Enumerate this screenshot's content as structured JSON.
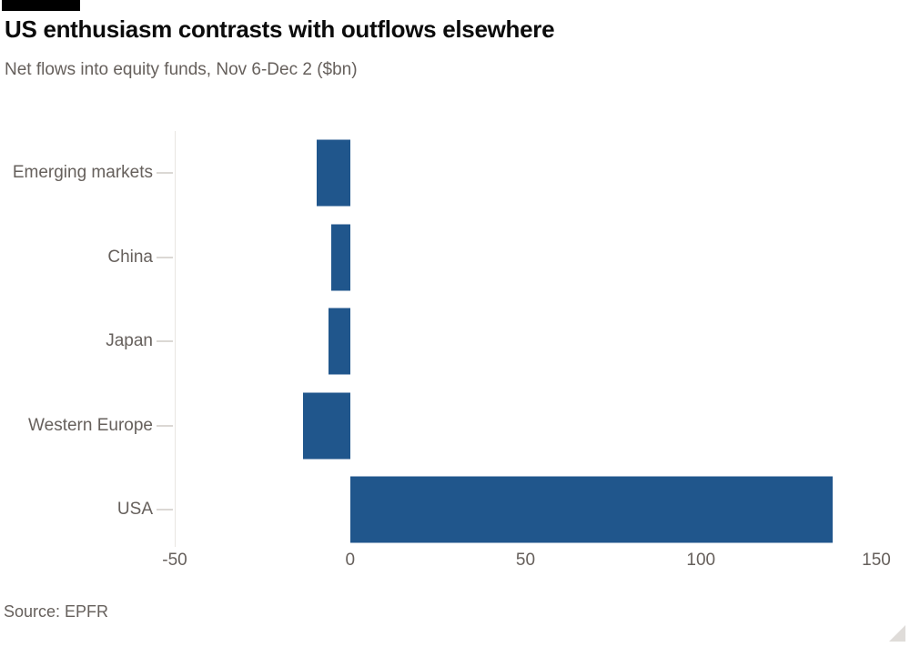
{
  "chart_data": {
    "type": "bar",
    "orientation": "horizontal",
    "title": "US enthusiasm contrasts with outflows elsewhere",
    "subtitle": "Net flows into equity funds, Nov 6-Dec 2 ($bn)",
    "categories": [
      "Emerging markets",
      "China",
      "Japan",
      "Western Europe",
      "USA"
    ],
    "values": [
      -9.5,
      -5.3,
      -6.2,
      -13.5,
      137.5
    ],
    "xlim": [
      -50,
      150
    ],
    "xticks": [
      -50,
      0,
      50,
      100,
      150
    ],
    "xlabel": "",
    "ylabel": "",
    "grid": "single faint vertical gridline at -50 only, no axis baseline",
    "legend": "none",
    "bar_color": "#20568c",
    "source": "Source: EPFR"
  },
  "colors": {
    "background": "#ffffff",
    "title_text": "#0b0b0b",
    "secondary_text": "#66605c",
    "gridline": "#e8e5e1",
    "brand_tag": "#000000",
    "bar": "#20568c"
  },
  "icons": {
    "resize_handle": "corner-resize-triangle"
  }
}
